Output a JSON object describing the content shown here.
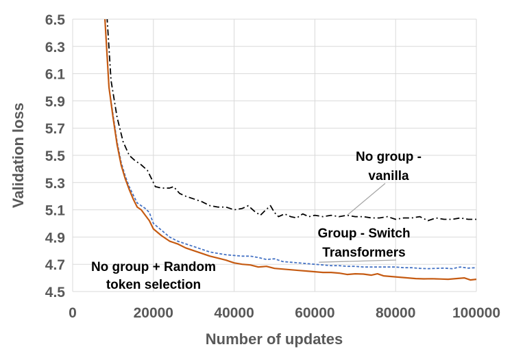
{
  "chart_data": {
    "type": "line",
    "title": "",
    "xlabel": "Number of updates",
    "ylabel": "Validation loss",
    "xlim": [
      0,
      100000
    ],
    "ylim": [
      4.5,
      6.5
    ],
    "xticks": [
      0,
      20000,
      40000,
      60000,
      80000,
      100000
    ],
    "xtick_labels": [
      "0",
      "20000",
      "40000",
      "60000",
      "80000",
      "100000"
    ],
    "yticks": [
      4.5,
      4.7,
      4.9,
      5.1,
      5.3,
      5.5,
      5.7,
      5.9,
      6.1,
      6.3,
      6.5
    ],
    "ytick_labels": [
      "4.5",
      "4.7",
      "4.9",
      "5.1",
      "5.3",
      "5.5",
      "5.7",
      "5.9",
      "6.1",
      "6.3",
      "6.5"
    ],
    "grid": true,
    "series": [
      {
        "name": "No group - vanilla",
        "color": "#000000",
        "style": "dashdot",
        "x": [
          8500,
          9500,
          11000,
          12500,
          14000,
          15500,
          17000,
          18500,
          19500,
          20500,
          22000,
          24000,
          25000,
          26500,
          28000,
          30000,
          32000,
          34000,
          36000,
          38000,
          40000,
          42000,
          43500,
          45000,
          46500,
          47500,
          49000,
          50000,
          51000,
          52500,
          54000,
          55500,
          57000,
          58500,
          60000,
          62000,
          64000,
          66000,
          68000,
          70000,
          72000,
          74000,
          76000,
          78000,
          80000,
          82000,
          84000,
          86000,
          88000,
          90000,
          92000,
          94000,
          96000,
          98000,
          100000
        ],
        "values": [
          6.52,
          6.05,
          5.78,
          5.6,
          5.5,
          5.46,
          5.43,
          5.39,
          5.33,
          5.27,
          5.26,
          5.26,
          5.27,
          5.22,
          5.2,
          5.18,
          5.16,
          5.13,
          5.12,
          5.12,
          5.1,
          5.11,
          5.13,
          5.09,
          5.06,
          5.09,
          5.13,
          5.08,
          5.05,
          5.07,
          5.05,
          5.04,
          5.07,
          5.05,
          5.06,
          5.05,
          5.06,
          5.05,
          5.06,
          5.05,
          5.05,
          5.04,
          5.04,
          5.05,
          5.03,
          5.04,
          5.04,
          5.05,
          5.02,
          5.04,
          5.03,
          5.03,
          5.04,
          5.03,
          5.03
        ]
      },
      {
        "name": "Group - Switch Transformers",
        "color": "#4472c4",
        "style": "dashed",
        "x": [
          8000,
          9000,
          10000,
          11000,
          12000,
          13000,
          14000,
          15000,
          16000,
          17000,
          18000,
          19000,
          20000,
          22000,
          24000,
          26000,
          28000,
          30000,
          32000,
          34000,
          36000,
          38000,
          40000,
          42000,
          44000,
          46000,
          48000,
          50000,
          52000,
          54000,
          56000,
          58000,
          60000,
          62000,
          64000,
          66000,
          68000,
          70000,
          72000,
          74000,
          76000,
          78000,
          80000,
          82000,
          84000,
          86000,
          88000,
          90000,
          92000,
          94000,
          96000,
          98000,
          100000
        ],
        "values": [
          6.5,
          6.0,
          5.8,
          5.6,
          5.45,
          5.35,
          5.27,
          5.21,
          5.15,
          5.13,
          5.11,
          5.08,
          5.0,
          4.95,
          4.9,
          4.87,
          4.85,
          4.83,
          4.81,
          4.79,
          4.78,
          4.77,
          4.765,
          4.76,
          4.76,
          4.75,
          4.735,
          4.74,
          4.72,
          4.715,
          4.71,
          4.705,
          4.7,
          4.695,
          4.69,
          4.69,
          4.685,
          4.685,
          4.68,
          4.68,
          4.68,
          4.68,
          4.68,
          4.675,
          4.675,
          4.67,
          4.668,
          4.67,
          4.672,
          4.668,
          4.68,
          4.672,
          4.675
        ]
      },
      {
        "name": "No group + Random token selection",
        "color": "#c55a11",
        "style": "solid",
        "x": [
          8000,
          9000,
          10000,
          11000,
          12000,
          13000,
          14000,
          15000,
          16000,
          17000,
          18000,
          19000,
          20000,
          22000,
          24000,
          26000,
          28000,
          30000,
          32000,
          34000,
          36000,
          38000,
          40000,
          42000,
          44000,
          46000,
          48000,
          50000,
          52000,
          54000,
          56000,
          58000,
          60000,
          62000,
          64000,
          66000,
          68000,
          70000,
          72000,
          74000,
          75500,
          77000,
          79000,
          81000,
          83000,
          85000,
          87000,
          89000,
          91000,
          93000,
          95000,
          97000,
          98500,
          100000
        ],
        "values": [
          6.5,
          6.0,
          5.78,
          5.58,
          5.43,
          5.33,
          5.25,
          5.18,
          5.12,
          5.1,
          5.06,
          5.02,
          4.96,
          4.91,
          4.87,
          4.85,
          4.82,
          4.8,
          4.78,
          4.76,
          4.745,
          4.73,
          4.71,
          4.7,
          4.695,
          4.68,
          4.685,
          4.67,
          4.665,
          4.66,
          4.655,
          4.65,
          4.645,
          4.64,
          4.64,
          4.635,
          4.625,
          4.63,
          4.628,
          4.62,
          4.63,
          4.615,
          4.61,
          4.605,
          4.6,
          4.595,
          4.593,
          4.594,
          4.592,
          4.59,
          4.595,
          4.6,
          4.585,
          4.59
        ]
      }
    ],
    "annotations": [
      {
        "lines": [
          "No group -",
          "vanilla"
        ],
        "series": "No group - vanilla",
        "points_to": [
          68000,
          5.06
        ]
      },
      {
        "lines": [
          "Group - Switch",
          "Transformers"
        ],
        "series": "Group - Switch Transformers",
        "points_to": [
          61000,
          4.7
        ]
      },
      {
        "lines": [
          "No group + Random",
          "token selection"
        ],
        "series": "No group + Random token selection"
      }
    ]
  }
}
